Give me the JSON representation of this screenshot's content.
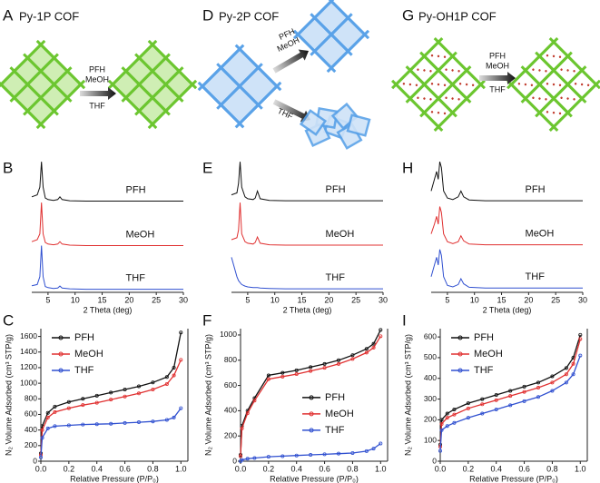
{
  "schemes": [
    {
      "panel": "A",
      "title": "Py-1P COF",
      "arrow_labels": [
        "PFH",
        "MeOH",
        "THF"
      ]
    },
    {
      "panel": "D",
      "title": "Py-2P COF",
      "arrow_labels": [
        "PFH",
        "MeOH",
        "THF"
      ]
    },
    {
      "panel": "G",
      "title": "Py-OH1P COF",
      "arrow_labels": [
        "PFH",
        "MeOH",
        "THF"
      ]
    }
  ],
  "chart_data": [
    {
      "type": "line",
      "panel": "B",
      "xlabel": "2 Theta (deg)",
      "xlim": [
        2,
        30
      ],
      "xticks": [
        5,
        10,
        15,
        20,
        25,
        30
      ],
      "ylim": [
        0,
        3.4
      ],
      "x": [
        2,
        3,
        3.5,
        3.8,
        4.1,
        4.5,
        5,
        6,
        6.8,
        7.2,
        7.6,
        9,
        12,
        16,
        20,
        25,
        30
      ],
      "series": [
        {
          "name": "PFH",
          "color": "#111111",
          "values": [
            2.45,
            2.5,
            2.7,
            3.35,
            2.7,
            2.42,
            2.38,
            2.36,
            2.38,
            2.45,
            2.38,
            2.35,
            2.34,
            2.34,
            2.34,
            2.34,
            2.34
          ]
        },
        {
          "name": "MeOH",
          "color": "#e03030",
          "values": [
            1.3,
            1.35,
            1.5,
            2.3,
            1.5,
            1.28,
            1.24,
            1.22,
            1.24,
            1.3,
            1.24,
            1.21,
            1.2,
            1.2,
            1.2,
            1.2,
            1.2
          ]
        },
        {
          "name": "THF",
          "color": "#3050d0",
          "values": [
            0.17,
            0.2,
            0.4,
            1.2,
            0.4,
            0.15,
            0.12,
            0.1,
            0.11,
            0.16,
            0.11,
            0.09,
            0.08,
            0.08,
            0.08,
            0.08,
            0.08
          ]
        }
      ]
    },
    {
      "type": "line",
      "panel": "E",
      "xlabel": "2 Theta (deg)",
      "xlim": [
        2,
        30
      ],
      "xticks": [
        5,
        10,
        15,
        20,
        25,
        30
      ],
      "ylim": [
        0,
        3.4
      ],
      "x": [
        2,
        3,
        3.3,
        3.6,
        3.9,
        4.5,
        5,
        6,
        6.4,
        6.8,
        7.3,
        9,
        12,
        16,
        20,
        25,
        30
      ],
      "series": [
        {
          "name": "PFH",
          "color": "#111111",
          "values": [
            2.5,
            2.55,
            2.8,
            3.35,
            2.7,
            2.45,
            2.4,
            2.38,
            2.42,
            2.6,
            2.4,
            2.36,
            2.35,
            2.35,
            2.35,
            2.35,
            2.35
          ]
        },
        {
          "name": "MeOH",
          "color": "#e03030",
          "values": [
            1.35,
            1.4,
            1.6,
            2.3,
            1.5,
            1.3,
            1.26,
            1.24,
            1.28,
            1.42,
            1.26,
            1.22,
            1.21,
            1.21,
            1.21,
            1.21,
            1.21
          ]
        },
        {
          "name": "THF",
          "color": "#3050d0",
          "values": [
            0.9,
            0.4,
            0.3,
            0.25,
            0.2,
            0.16,
            0.14,
            0.12,
            0.12,
            0.12,
            0.11,
            0.1,
            0.09,
            0.09,
            0.09,
            0.09,
            0.09
          ]
        }
      ]
    },
    {
      "type": "line",
      "panel": "H",
      "xlabel": "2 Theta (deg)",
      "xlim": [
        2,
        30
      ],
      "xticks": [
        5,
        10,
        15,
        20,
        25,
        30
      ],
      "ylim": [
        0,
        3.4
      ],
      "x": [
        2,
        2.6,
        3,
        3.3,
        3.6,
        3.9,
        4.3,
        5,
        6,
        7,
        7.5,
        8,
        9,
        12,
        16,
        20,
        25,
        30
      ],
      "series": [
        {
          "name": "PFH",
          "color": "#111111",
          "values": [
            2.6,
            2.9,
            3.1,
            2.9,
            3.35,
            3.2,
            2.6,
            2.42,
            2.38,
            2.45,
            2.6,
            2.45,
            2.37,
            2.35,
            2.35,
            2.35,
            2.35,
            2.35
          ]
        },
        {
          "name": "MeOH",
          "color": "#e03030",
          "values": [
            1.5,
            1.75,
            1.95,
            1.75,
            2.2,
            2.05,
            1.5,
            1.3,
            1.25,
            1.3,
            1.45,
            1.32,
            1.24,
            1.22,
            1.22,
            1.22,
            1.22,
            1.22
          ]
        },
        {
          "name": "THF",
          "color": "#3050d0",
          "values": [
            0.4,
            0.7,
            0.9,
            0.7,
            1.1,
            0.95,
            0.4,
            0.18,
            0.14,
            0.2,
            0.35,
            0.22,
            0.13,
            0.11,
            0.11,
            0.11,
            0.11,
            0.11
          ]
        }
      ]
    },
    {
      "type": "line",
      "panel": "C",
      "xlabel": "Relative Pressure (P/P₀)",
      "ylabel": "N₂ Volume Adsorbed (cm³ STP/g)",
      "legend_position": "upper left",
      "xlim": [
        0,
        1.05
      ],
      "xticks": [
        {
          "value": 0,
          "label": "0.0"
        },
        0.2,
        0.4,
        0.6,
        0.8,
        {
          "value": 1,
          "label": "1.0"
        }
      ],
      "ylim": [
        0,
        1700
      ],
      "yticks": [
        0,
        200,
        400,
        600,
        800,
        1000,
        1200,
        1400,
        1600
      ],
      "x": [
        0,
        0.01,
        0.05,
        0.1,
        0.2,
        0.3,
        0.4,
        0.5,
        0.6,
        0.7,
        0.8,
        0.9,
        0.95,
        1.0
      ],
      "series": [
        {
          "name": "PFH",
          "color": "#111111",
          "values": [
            100,
            450,
            620,
            700,
            760,
            800,
            840,
            880,
            920,
            960,
            1010,
            1080,
            1200,
            1650
          ]
        },
        {
          "name": "MeOH",
          "color": "#e03030",
          "values": [
            80,
            400,
            560,
            630,
            680,
            720,
            750,
            790,
            830,
            870,
            920,
            990,
            1100,
            1300
          ]
        },
        {
          "name": "THF",
          "color": "#3050d0",
          "values": [
            50,
            300,
            420,
            450,
            460,
            470,
            475,
            480,
            490,
            500,
            510,
            530,
            560,
            680
          ]
        }
      ]
    },
    {
      "type": "line",
      "panel": "F",
      "xlabel": "Relative Pressure (P/P₀)",
      "ylabel": "N₂ Volume Adsorbed (cm³ STP/g)",
      "legend_position": "center right",
      "xlim": [
        0,
        1.05
      ],
      "xticks": [
        {
          "value": 0,
          "label": "0.0"
        },
        0.2,
        0.4,
        0.6,
        0.8,
        {
          "value": 1,
          "label": "1.0"
        }
      ],
      "ylim": [
        0,
        1050
      ],
      "yticks": [
        0,
        200,
        400,
        600,
        800,
        1000
      ],
      "x": [
        0,
        0.01,
        0.05,
        0.1,
        0.2,
        0.3,
        0.4,
        0.5,
        0.6,
        0.7,
        0.8,
        0.9,
        0.95,
        1.0
      ],
      "series": [
        {
          "name": "PFH",
          "color": "#111111",
          "values": [
            50,
            280,
            400,
            500,
            680,
            700,
            720,
            745,
            770,
            800,
            840,
            890,
            930,
            1040
          ]
        },
        {
          "name": "MeOH",
          "color": "#e03030",
          "values": [
            40,
            260,
            380,
            480,
            650,
            670,
            690,
            715,
            740,
            770,
            810,
            860,
            900,
            990
          ]
        },
        {
          "name": "THF",
          "color": "#3050d0",
          "values": [
            0,
            10,
            20,
            25,
            35,
            40,
            45,
            50,
            55,
            60,
            65,
            80,
            100,
            140
          ]
        }
      ]
    },
    {
      "type": "line",
      "panel": "I",
      "xlabel": "Relative Pressure (P/P₀)",
      "ylabel": "N₂ Volume Adsorbed (cm³ STP/g)",
      "legend_position": "upper left",
      "xlim": [
        0,
        1.05
      ],
      "xticks": [
        {
          "value": 0,
          "label": "0.0"
        },
        0.2,
        0.4,
        0.6,
        0.8,
        {
          "value": 1,
          "label": "1.0"
        }
      ],
      "ylim": [
        0,
        640
      ],
      "yticks": [
        0,
        100,
        200,
        300,
        400,
        500,
        600
      ],
      "x": [
        0,
        0.01,
        0.05,
        0.1,
        0.2,
        0.3,
        0.4,
        0.5,
        0.6,
        0.7,
        0.8,
        0.9,
        0.95,
        1.0
      ],
      "series": [
        {
          "name": "PFH",
          "color": "#111111",
          "values": [
            80,
            200,
            230,
            250,
            280,
            300,
            320,
            340,
            360,
            380,
            410,
            450,
            500,
            610
          ]
        },
        {
          "name": "MeOH",
          "color": "#e03030",
          "values": [
            70,
            180,
            210,
            225,
            255,
            275,
            295,
            315,
            335,
            355,
            380,
            420,
            470,
            590
          ]
        },
        {
          "name": "THF",
          "color": "#3050d0",
          "values": [
            50,
            150,
            170,
            185,
            210,
            230,
            250,
            270,
            290,
            310,
            340,
            380,
            420,
            510
          ]
        }
      ]
    }
  ]
}
